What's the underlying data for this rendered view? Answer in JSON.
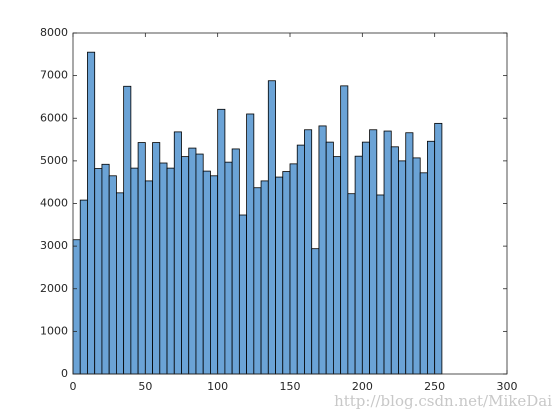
{
  "chart_data": {
    "type": "histogram",
    "bins": [
      0,
      5,
      10,
      15,
      20,
      25,
      30,
      35,
      40,
      45,
      50,
      55,
      60,
      65,
      70,
      75,
      80,
      85,
      90,
      95,
      100,
      105,
      110,
      115,
      120,
      125,
      130,
      135,
      140,
      145,
      150,
      155,
      160,
      165,
      170,
      175,
      180,
      185,
      190,
      195,
      200,
      205,
      210,
      215,
      220,
      225,
      230,
      235,
      240,
      245,
      250,
      255
    ],
    "values": [
      3150,
      4080,
      7550,
      4820,
      4920,
      4650,
      4250,
      6750,
      4830,
      5430,
      4530,
      5430,
      4950,
      4830,
      5680,
      5100,
      5300,
      5160,
      4760,
      4650,
      6210,
      4970,
      5280,
      3730,
      6100,
      4370,
      4530,
      6880,
      4620,
      4750,
      4930,
      5370,
      5730,
      2940,
      5820,
      5440,
      5100,
      6760,
      4230,
      5110,
      5440,
      5730,
      4200,
      5700,
      5330,
      5000,
      5660,
      5070,
      4720,
      5460,
      5880
    ],
    "color": "#6ba3d6",
    "xlim": [
      0,
      300
    ],
    "xticks": [
      0,
      50,
      100,
      150,
      200,
      250,
      300
    ],
    "ylim": [
      0,
      8000
    ],
    "yticks": [
      0,
      1000,
      2000,
      3000,
      4000,
      5000,
      6000,
      7000,
      8000
    ],
    "annotation": "http://blog.csdn.net/MikeDai"
  }
}
